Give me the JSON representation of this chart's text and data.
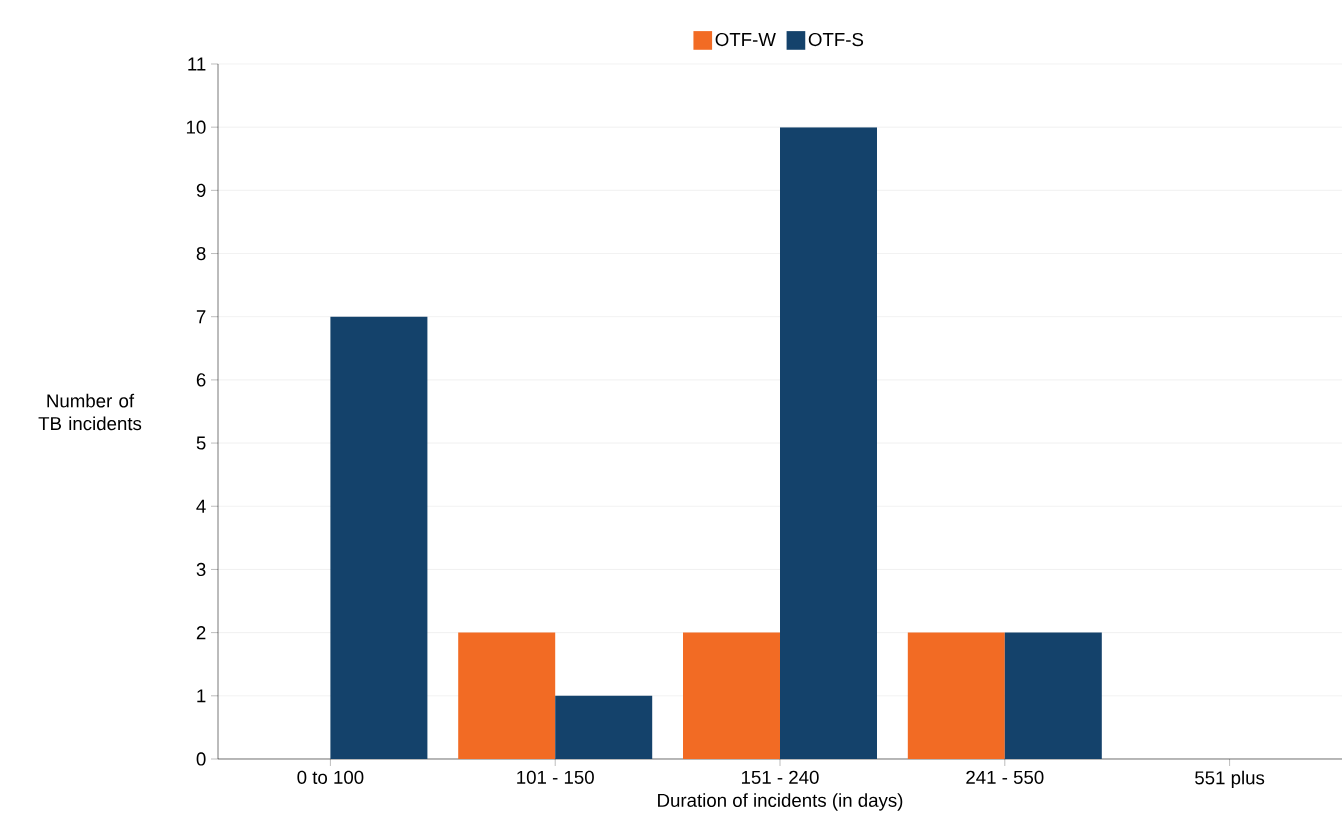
{
  "chart_data": {
    "type": "bar",
    "categories": [
      "0 to 100",
      "101 - 150",
      "151 - 240",
      "241 - 550",
      "551 plus"
    ],
    "series": [
      {
        "name": "OTF-W",
        "color": "#f26b24",
        "values": [
          0,
          2,
          2,
          2,
          0
        ]
      },
      {
        "name": "OTF-S",
        "color": "#14426b",
        "values": [
          7,
          1,
          10,
          2,
          0
        ]
      }
    ],
    "xlabel": "Duration of incidents (in days)",
    "ylabel": "Number of TB incidents",
    "ylim": [
      0,
      11
    ],
    "yticks": [
      0,
      1,
      2,
      3,
      4,
      5,
      6,
      7,
      8,
      9,
      10,
      11
    ],
    "grid": "y",
    "legend": "top"
  }
}
